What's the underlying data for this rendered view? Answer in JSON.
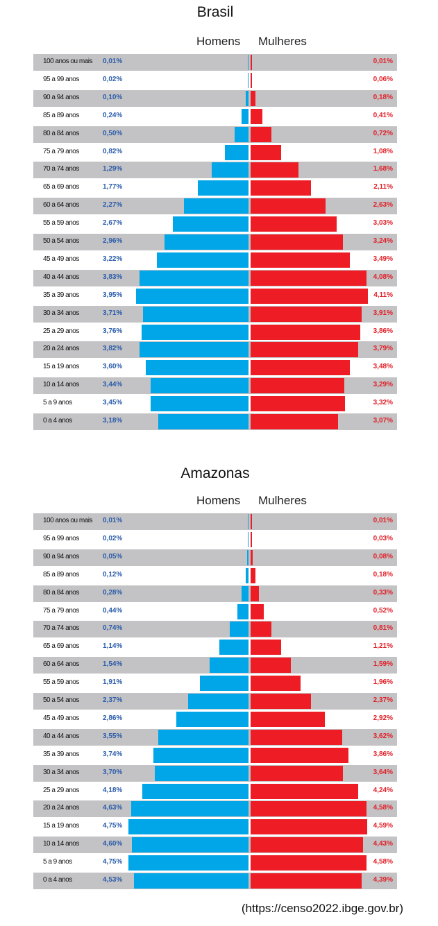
{
  "chart_data": [
    {
      "type": "bar",
      "orientation": "horizontal-pyramid",
      "title": "Brasil",
      "legend": [
        "Homens",
        "Mulheres"
      ],
      "categories": [
        "100 anos ou mais",
        "95 a 99 anos",
        "90 a 94 anos",
        "85 a 89 anos",
        "80 a 84 anos",
        "75 a 79 anos",
        "70 a 74 anos",
        "65 a 69 anos",
        "60 a 64 anos",
        "55 a 59 anos",
        "50 a 54 anos",
        "45 a 49 anos",
        "40 a 44 anos",
        "35 a 39 anos",
        "30 a 34 anos",
        "25 a 29 anos",
        "20 a 24 anos",
        "15 a 19 anos",
        "10 a 14 anos",
        "5 a 9 anos",
        "0 a 4 anos"
      ],
      "series": [
        {
          "name": "Homens",
          "color": "#00a6e8",
          "values": [
            0.01,
            0.02,
            0.1,
            0.24,
            0.5,
            0.82,
            1.29,
            1.77,
            2.27,
            2.67,
            2.96,
            3.22,
            3.83,
            3.95,
            3.71,
            3.76,
            3.82,
            3.6,
            3.44,
            3.45,
            3.18
          ]
        },
        {
          "name": "Mulheres",
          "color": "#ee1c25",
          "values": [
            0.01,
            0.06,
            0.18,
            0.41,
            0.72,
            1.08,
            1.68,
            2.11,
            2.63,
            3.03,
            3.24,
            3.49,
            4.08,
            4.11,
            3.91,
            3.86,
            3.79,
            3.48,
            3.29,
            3.32,
            3.07
          ]
        }
      ],
      "unit": "%"
    },
    {
      "type": "bar",
      "orientation": "horizontal-pyramid",
      "title": "Amazonas",
      "legend": [
        "Homens",
        "Mulheres"
      ],
      "categories": [
        "100 anos ou mais",
        "95 a 99 anos",
        "90 a 94 anos",
        "85 a 89 anos",
        "80 a 84 anos",
        "75 a 79 anos",
        "70 a 74 anos",
        "65 a 69 anos",
        "60 a 64 anos",
        "55 a 59 anos",
        "50 a 54 anos",
        "45 a 49 anos",
        "40 a 44 anos",
        "35 a 39 anos",
        "30 a 34 anos",
        "25 a 29 anos",
        "20 a 24 anos",
        "15 a 19 anos",
        "10 a 14 anos",
        "5 a 9 anos",
        "0 a 4 anos"
      ],
      "series": [
        {
          "name": "Homens",
          "color": "#00a6e8",
          "values": [
            0.01,
            0.02,
            0.05,
            0.12,
            0.28,
            0.44,
            0.74,
            1.14,
            1.54,
            1.91,
            2.37,
            2.86,
            3.55,
            3.74,
            3.7,
            4.18,
            4.63,
            4.75,
            4.6,
            4.75,
            4.53
          ]
        },
        {
          "name": "Mulheres",
          "color": "#ee1c25",
          "values": [
            0.01,
            0.03,
            0.08,
            0.18,
            0.33,
            0.52,
            0.81,
            1.21,
            1.59,
            1.96,
            2.37,
            2.92,
            3.62,
            3.86,
            3.64,
            4.24,
            4.58,
            4.59,
            4.43,
            4.58,
            4.39
          ]
        }
      ],
      "unit": "%"
    }
  ],
  "source": "(https://censo2022.ibge.gov.br)"
}
